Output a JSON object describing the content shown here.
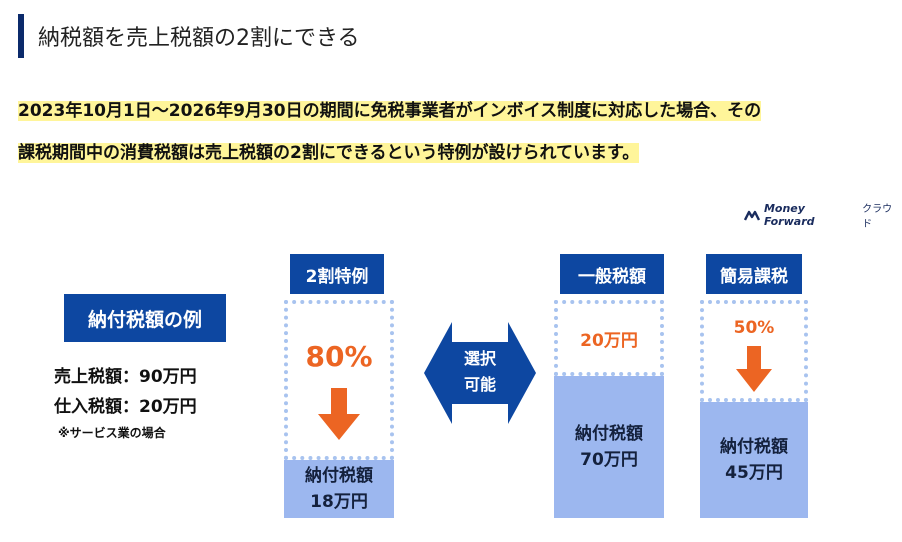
{
  "heading": {
    "title": "納税額を売上税額の2割にできる"
  },
  "lead": {
    "line1": "2023年10月1日〜2026年9月30日の期間に免税事業者がインボイス制度に対応した場合、その",
    "line2": "課税期間中の消費税額は売上税額の2割にできるという特例が設けられています。"
  },
  "logo": {
    "brand": "Money Forward",
    "suffix": "クラウド",
    "icon": "money-forward-logo-mark"
  },
  "example": {
    "title": "納付税額の例",
    "sales_tax": "売上税額：90万円",
    "purchase_tax": "仕入税額：20万円",
    "note": "※サービス業の場合"
  },
  "schemes": {
    "special": {
      "label": "2割特例",
      "percent": "80%",
      "pay_label": "納付税額",
      "pay_value": "18万円"
    },
    "middle": {
      "line1": "選択",
      "line2": "可能"
    },
    "general": {
      "label": "一般税額",
      "deduct": "20万円",
      "pay_label": "納付税額",
      "pay_value": "70万円"
    },
    "simplified": {
      "label": "簡易課税",
      "percent": "50%",
      "pay_label": "納付税額",
      "pay_value": "45万円"
    }
  },
  "colors": {
    "navy": "#0d47a1",
    "orange": "#ec6523",
    "fill": "#9cb7ef",
    "dotted": "#a8c3ef",
    "highlight": "#fff59a"
  }
}
